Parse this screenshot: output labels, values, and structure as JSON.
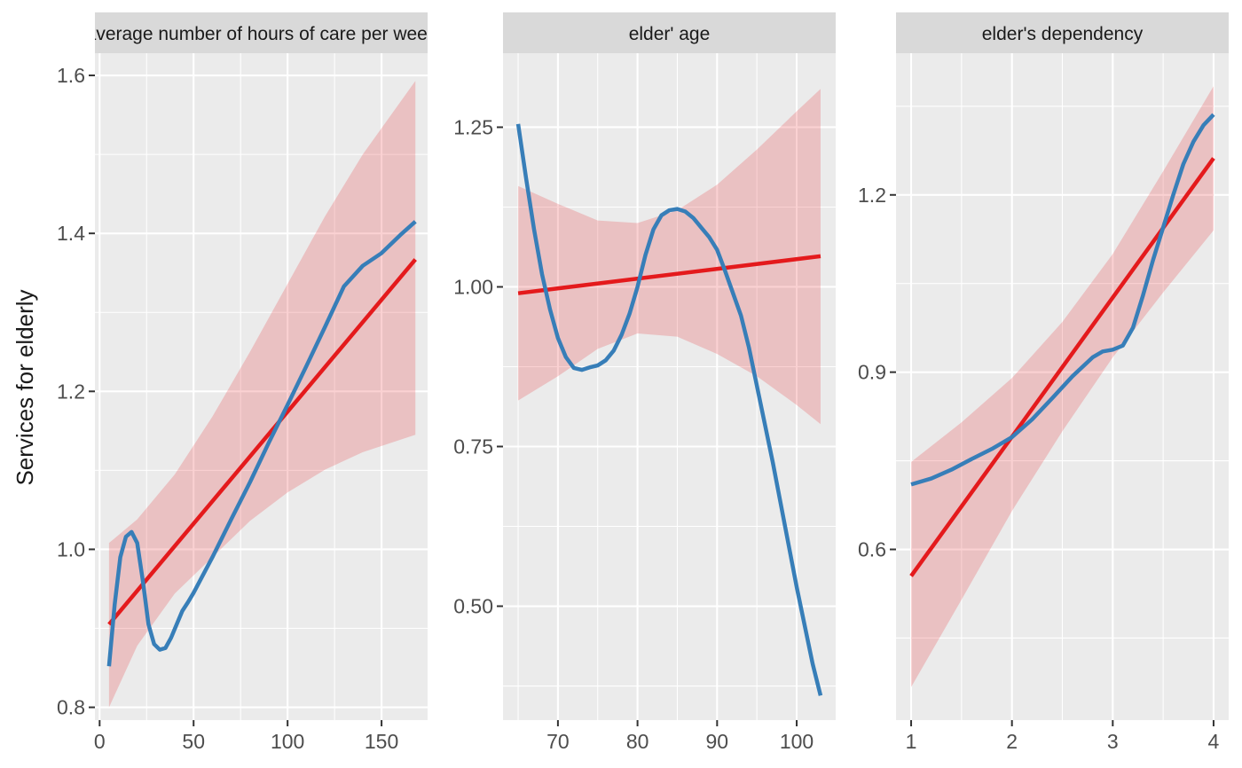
{
  "chart_data": {
    "type": "line",
    "ylabel": "Services for elderly",
    "colors": {
      "linear": "#E41A1C",
      "ribbon": "#E41A1C",
      "smooth": "#377EB8"
    },
    "panels": [
      {
        "strip": "average number of hours of care per week",
        "xlim": [
          -2.5,
          174.5
        ],
        "ylim": [
          0.7838,
          1.6281
        ],
        "xticks": [
          0,
          50,
          100,
          150
        ],
        "yticks": [
          0.8,
          1.0,
          1.2,
          1.4,
          1.6
        ],
        "ytick_labels": [
          "0.8",
          "1.0",
          "1.2",
          "1.4",
          "1.6"
        ],
        "linear": {
          "x": [
            5,
            168
          ],
          "y": [
            0.905,
            1.367
          ]
        },
        "ribbon_upper": {
          "x": [
            5,
            20,
            40,
            60,
            80,
            100,
            120,
            140,
            168
          ],
          "y": [
            1.008,
            1.038,
            1.095,
            1.168,
            1.25,
            1.336,
            1.422,
            1.5,
            1.593
          ]
        },
        "ribbon_lower": {
          "x": [
            5,
            20,
            40,
            60,
            80,
            100,
            120,
            140,
            168
          ],
          "y": [
            0.8,
            0.878,
            0.944,
            0.99,
            1.036,
            1.072,
            1.101,
            1.123,
            1.145
          ]
        },
        "smooth": {
          "x": [
            5,
            8,
            11,
            14,
            17,
            20,
            23,
            26,
            29,
            32,
            35,
            38,
            41,
            44,
            47,
            50,
            60,
            70,
            80,
            90,
            100,
            110,
            120,
            130,
            140,
            150,
            160,
            168
          ],
          "y": [
            0.852,
            0.93,
            0.99,
            1.016,
            1.022,
            1.008,
            0.96,
            0.905,
            0.88,
            0.873,
            0.875,
            0.888,
            0.905,
            0.922,
            0.933,
            0.945,
            0.99,
            1.038,
            1.085,
            1.135,
            1.183,
            1.232,
            1.282,
            1.333,
            1.359,
            1.375,
            1.398,
            1.415
          ]
        }
      },
      {
        "strip": "elder' age",
        "xlim": [
          63.1,
          104.9
        ],
        "ylim": [
          0.3216,
          1.3659
        ],
        "xticks": [
          70,
          80,
          90,
          100
        ],
        "yticks": [
          0.5,
          0.75,
          1.0,
          1.25
        ],
        "ytick_labels": [
          "0.50",
          "0.75",
          "1.00",
          "1.25"
        ],
        "linear": {
          "x": [
            65,
            103
          ],
          "y": [
            0.99,
            1.048
          ]
        },
        "ribbon_upper": {
          "x": [
            65,
            70,
            75,
            80,
            85,
            90,
            95,
            100,
            103
          ],
          "y": [
            1.158,
            1.13,
            1.104,
            1.1,
            1.12,
            1.16,
            1.215,
            1.275,
            1.31
          ]
        },
        "ribbon_lower": {
          "x": [
            65,
            70,
            75,
            80,
            85,
            90,
            95,
            100,
            103
          ],
          "y": [
            0.822,
            0.86,
            0.903,
            0.927,
            0.922,
            0.895,
            0.86,
            0.815,
            0.785
          ]
        },
        "smooth": {
          "x": [
            65,
            66,
            67,
            68,
            69,
            70,
            71,
            72,
            73,
            74,
            75,
            76,
            77,
            78,
            79,
            80,
            81,
            82,
            83,
            84,
            85,
            86,
            87,
            88,
            89,
            90,
            91,
            92,
            93,
            94,
            95,
            96,
            97,
            98,
            99,
            100,
            101,
            102,
            103
          ],
          "y": [
            1.255,
            1.17,
            1.09,
            1.02,
            0.965,
            0.92,
            0.89,
            0.873,
            0.87,
            0.874,
            0.877,
            0.885,
            0.9,
            0.925,
            0.958,
            1.0,
            1.05,
            1.09,
            1.112,
            1.12,
            1.122,
            1.118,
            1.108,
            1.093,
            1.078,
            1.058,
            1.025,
            0.99,
            0.955,
            0.905,
            0.845,
            0.785,
            0.725,
            0.66,
            0.595,
            0.53,
            0.47,
            0.41,
            0.36
          ]
        }
      },
      {
        "strip": "elder's dependency",
        "xlim": [
          0.85,
          4.15
        ],
        "ylim": [
          0.3111,
          1.4398
        ],
        "xticks": [
          1,
          2,
          3,
          4
        ],
        "yticks": [
          0.6,
          0.9,
          1.2
        ],
        "ytick_labels": [
          "0.6",
          "0.9",
          "1.2"
        ],
        "linear": {
          "x": [
            1,
            4
          ],
          "y": [
            0.555,
            1.262
          ]
        },
        "ribbon_upper": {
          "x": [
            1,
            1.5,
            2,
            2.5,
            3,
            3.5,
            4
          ],
          "y": [
            0.748,
            0.815,
            0.89,
            0.985,
            1.1,
            1.24,
            1.384
          ]
        },
        "ribbon_lower": {
          "x": [
            1,
            1.5,
            2,
            2.5,
            3,
            3.5,
            4
          ],
          "y": [
            0.367,
            0.515,
            0.665,
            0.8,
            0.925,
            1.035,
            1.14
          ]
        },
        "smooth": {
          "x": [
            1,
            1.2,
            1.4,
            1.6,
            1.8,
            2,
            2.2,
            2.4,
            2.6,
            2.8,
            2.9,
            3,
            3.1,
            3.2,
            3.3,
            3.4,
            3.5,
            3.6,
            3.7,
            3.8,
            3.9,
            4
          ],
          "y": [
            0.71,
            0.72,
            0.735,
            0.753,
            0.77,
            0.79,
            0.82,
            0.856,
            0.893,
            0.925,
            0.935,
            0.938,
            0.945,
            0.975,
            1.03,
            1.09,
            1.145,
            1.2,
            1.252,
            1.29,
            1.318,
            1.336
          ]
        }
      }
    ]
  }
}
